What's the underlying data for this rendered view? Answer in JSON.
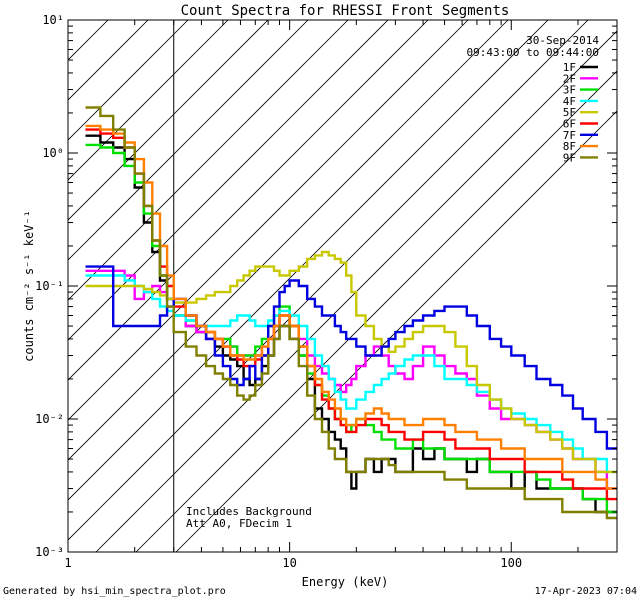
{
  "chart_data": {
    "type": "line",
    "title": "Count Spectra for RHESSI Front Segments",
    "xlabel": "Energy (keV)",
    "ylabel": "counts cm⁻² s⁻¹ keV⁻¹",
    "x_scale": "log",
    "y_scale": "log",
    "xlim": [
      1,
      300
    ],
    "ylim": [
      0.001,
      10
    ],
    "x_ticks": [
      {
        "value": 1,
        "label": "1"
      },
      {
        "value": 10,
        "label": "10"
      },
      {
        "value": 100,
        "label": "100"
      }
    ],
    "y_ticks": [
      {
        "value": 0.001,
        "label": "10⁻³"
      },
      {
        "value": 0.01,
        "label": "10⁻²"
      },
      {
        "value": 0.1,
        "label": "10⁻¹"
      },
      {
        "value": 1,
        "label": "10⁰"
      },
      {
        "value": 10,
        "label": "10¹"
      }
    ],
    "date": "30-Sep-2014",
    "time_range": "09:43:00 to 09:44:00",
    "annotation_lines": [
      "Includes Background",
      "Att A0, FDecim 1"
    ],
    "shaded_region_kev": [
      1,
      3
    ],
    "legend_placement": "top-right",
    "energy_edges": [
      1.2,
      1.4,
      1.6,
      1.8,
      2.0,
      2.2,
      2.4,
      2.6,
      2.8,
      3.0,
      3.4,
      3.8,
      4.2,
      4.6,
      5.0,
      5.4,
      5.8,
      6.2,
      6.6,
      7.0,
      7.5,
      8.0,
      8.5,
      9.0,
      9.5,
      10.0,
      11,
      12,
      13,
      14,
      15,
      16,
      17,
      18,
      19,
      20,
      22,
      24,
      26,
      28,
      30,
      33,
      36,
      40,
      45,
      50,
      56,
      63,
      70,
      80,
      90,
      100,
      115,
      130,
      150,
      170,
      190,
      210,
      240,
      270,
      300
    ],
    "series": [
      {
        "name": "1F",
        "color": "#000000",
        "values": [
          1.35,
          1.2,
          1.1,
          0.9,
          0.55,
          0.3,
          0.18,
          0.11,
          0.08,
          0.06,
          0.05,
          0.045,
          0.04,
          0.035,
          0.03,
          0.028,
          0.025,
          0.02,
          0.018,
          0.02,
          0.025,
          0.03,
          0.04,
          0.05,
          0.05,
          0.04,
          0.03,
          0.02,
          0.012,
          0.01,
          0.008,
          0.007,
          0.006,
          0.004,
          0.003,
          0.004,
          0.005,
          0.004,
          0.005,
          0.005,
          0.004,
          0.004,
          0.006,
          0.005,
          0.006,
          0.005,
          0.005,
          0.004,
          0.005,
          0.004,
          0.004,
          0.003,
          0.004,
          0.003,
          0.003,
          0.003,
          0.003,
          0.0025,
          0.002,
          0.002
        ]
      },
      {
        "name": "2F",
        "color": "#ff00ff",
        "values": [
          0.13,
          0.13,
          0.13,
          0.12,
          0.08,
          0.09,
          0.1,
          0.09,
          0.08,
          0.06,
          0.05,
          0.045,
          0.04,
          0.04,
          0.035,
          0.035,
          0.03,
          0.03,
          0.03,
          0.03,
          0.035,
          0.04,
          0.05,
          0.06,
          0.06,
          0.05,
          0.04,
          0.03,
          0.025,
          0.022,
          0.02,
          0.018,
          0.016,
          0.018,
          0.02,
          0.025,
          0.03,
          0.035,
          0.03,
          0.025,
          0.022,
          0.02,
          0.025,
          0.035,
          0.03,
          0.025,
          0.022,
          0.02,
          0.015,
          0.012,
          0.01,
          0.01,
          0.009,
          0.008,
          0.007,
          0.006,
          0.005,
          0.005,
          0.004,
          0.003
        ]
      },
      {
        "name": "3F",
        "color": "#00e000",
        "values": [
          1.15,
          1.1,
          1.0,
          0.8,
          0.6,
          0.35,
          0.2,
          0.12,
          0.08,
          0.06,
          0.055,
          0.05,
          0.045,
          0.04,
          0.04,
          0.035,
          0.03,
          0.03,
          0.03,
          0.035,
          0.04,
          0.05,
          0.06,
          0.07,
          0.07,
          0.05,
          0.03,
          0.022,
          0.018,
          0.015,
          0.012,
          0.01,
          0.009,
          0.008,
          0.009,
          0.01,
          0.009,
          0.008,
          0.007,
          0.007,
          0.006,
          0.006,
          0.007,
          0.006,
          0.006,
          0.005,
          0.005,
          0.005,
          0.005,
          0.004,
          0.004,
          0.004,
          0.004,
          0.0035,
          0.003,
          0.003,
          0.003,
          0.0025,
          0.0025,
          0.002
        ]
      },
      {
        "name": "4F",
        "color": "#00ffff",
        "values": [
          0.12,
          0.12,
          0.12,
          0.11,
          0.1,
          0.09,
          0.08,
          0.07,
          0.065,
          0.06,
          0.055,
          0.05,
          0.05,
          0.05,
          0.05,
          0.055,
          0.06,
          0.06,
          0.055,
          0.05,
          0.05,
          0.055,
          0.06,
          0.065,
          0.065,
          0.06,
          0.05,
          0.04,
          0.03,
          0.025,
          0.02,
          0.016,
          0.014,
          0.012,
          0.012,
          0.014,
          0.016,
          0.018,
          0.02,
          0.022,
          0.025,
          0.028,
          0.03,
          0.03,
          0.025,
          0.02,
          0.02,
          0.018,
          0.016,
          0.014,
          0.012,
          0.011,
          0.01,
          0.009,
          0.008,
          0.007,
          0.006,
          0.005,
          0.005,
          0.004
        ]
      },
      {
        "name": "5F",
        "color": "#c8c800",
        "values": [
          0.1,
          0.1,
          0.1,
          0.1,
          0.1,
          0.095,
          0.09,
          0.085,
          0.08,
          0.075,
          0.075,
          0.08,
          0.085,
          0.09,
          0.09,
          0.1,
          0.11,
          0.12,
          0.13,
          0.14,
          0.14,
          0.14,
          0.13,
          0.12,
          0.12,
          0.13,
          0.14,
          0.16,
          0.17,
          0.18,
          0.17,
          0.16,
          0.15,
          0.12,
          0.09,
          0.06,
          0.05,
          0.04,
          0.035,
          0.032,
          0.035,
          0.04,
          0.045,
          0.05,
          0.05,
          0.045,
          0.035,
          0.025,
          0.018,
          0.014,
          0.012,
          0.01,
          0.009,
          0.008,
          0.007,
          0.006,
          0.005,
          0.005,
          0.004,
          0.004
        ]
      },
      {
        "name": "6F",
        "color": "#ff0000",
        "values": [
          1.5,
          1.4,
          1.3,
          1.1,
          0.7,
          0.4,
          0.22,
          0.14,
          0.1,
          0.07,
          0.06,
          0.05,
          0.045,
          0.04,
          0.035,
          0.03,
          0.028,
          0.025,
          0.025,
          0.028,
          0.03,
          0.04,
          0.05,
          0.06,
          0.06,
          0.05,
          0.035,
          0.025,
          0.018,
          0.014,
          0.012,
          0.01,
          0.009,
          0.008,
          0.008,
          0.009,
          0.01,
          0.01,
          0.009,
          0.008,
          0.008,
          0.007,
          0.007,
          0.008,
          0.008,
          0.007,
          0.006,
          0.006,
          0.006,
          0.005,
          0.005,
          0.005,
          0.004,
          0.004,
          0.004,
          0.0035,
          0.003,
          0.003,
          0.003,
          0.0025
        ]
      },
      {
        "name": "7F",
        "color": "#0000e0",
        "values": [
          0.14,
          0.14,
          0.05,
          0.05,
          0.05,
          0.05,
          0.05,
          0.06,
          0.07,
          0.08,
          0.06,
          0.05,
          0.04,
          0.03,
          0.025,
          0.02,
          0.018,
          0.02,
          0.025,
          0.02,
          0.03,
          0.05,
          0.07,
          0.09,
          0.1,
          0.11,
          0.1,
          0.08,
          0.07,
          0.06,
          0.06,
          0.05,
          0.045,
          0.04,
          0.04,
          0.035,
          0.03,
          0.03,
          0.035,
          0.04,
          0.045,
          0.05,
          0.055,
          0.06,
          0.065,
          0.07,
          0.07,
          0.06,
          0.05,
          0.04,
          0.035,
          0.03,
          0.025,
          0.02,
          0.018,
          0.015,
          0.012,
          0.01,
          0.008,
          0.006
        ]
      },
      {
        "name": "8F",
        "color": "#ff8000",
        "values": [
          1.6,
          1.5,
          1.4,
          1.2,
          0.9,
          0.6,
          0.35,
          0.2,
          0.12,
          0.08,
          0.06,
          0.05,
          0.045,
          0.04,
          0.035,
          0.03,
          0.03,
          0.028,
          0.028,
          0.03,
          0.035,
          0.04,
          0.05,
          0.06,
          0.06,
          0.05,
          0.035,
          0.025,
          0.02,
          0.016,
          0.014,
          0.012,
          0.01,
          0.009,
          0.009,
          0.01,
          0.011,
          0.012,
          0.011,
          0.01,
          0.01,
          0.009,
          0.009,
          0.01,
          0.01,
          0.009,
          0.008,
          0.008,
          0.007,
          0.007,
          0.006,
          0.006,
          0.005,
          0.005,
          0.005,
          0.004,
          0.004,
          0.004,
          0.0035,
          0.003
        ]
      },
      {
        "name": "9F",
        "color": "#808000",
        "values": [
          2.2,
          1.9,
          1.5,
          1.1,
          0.7,
          0.4,
          0.22,
          0.12,
          0.07,
          0.045,
          0.035,
          0.03,
          0.025,
          0.022,
          0.02,
          0.018,
          0.015,
          0.014,
          0.015,
          0.018,
          0.022,
          0.03,
          0.04,
          0.05,
          0.05,
          0.04,
          0.025,
          0.015,
          0.01,
          0.008,
          0.006,
          0.005,
          0.005,
          0.004,
          0.004,
          0.004,
          0.005,
          0.005,
          0.005,
          0.0045,
          0.004,
          0.004,
          0.004,
          0.004,
          0.004,
          0.0035,
          0.0035,
          0.003,
          0.003,
          0.003,
          0.003,
          0.003,
          0.0025,
          0.0025,
          0.0025,
          0.002,
          0.002,
          0.002,
          0.002,
          0.0018
        ]
      }
    ]
  },
  "footer": {
    "left": "Generated by hsi_min_spectra_plot.pro",
    "right": "17-Apr-2023 07:04"
  }
}
